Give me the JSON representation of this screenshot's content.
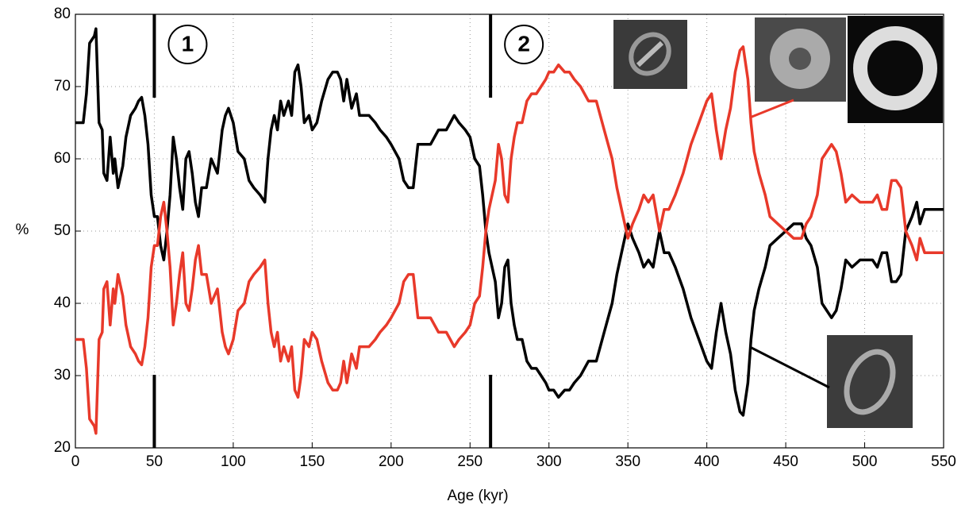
{
  "chart_data": {
    "type": "line",
    "xlabel": "Age (kyr)",
    "ylabel": "%",
    "xlim": [
      0,
      550
    ],
    "ylim": [
      20,
      80
    ],
    "xticks": [
      0,
      50,
      100,
      150,
      200,
      250,
      300,
      350,
      400,
      450,
      500,
      550
    ],
    "yticks": [
      20,
      30,
      40,
      50,
      60,
      70,
      80
    ],
    "grid": true,
    "markers": [
      {
        "x": 50,
        "label": "1"
      },
      {
        "x": 263,
        "label": "2"
      }
    ],
    "x": [
      0,
      3,
      5,
      7,
      9,
      12,
      13,
      15,
      17,
      18,
      20,
      22,
      24,
      25,
      27,
      30,
      32,
      35,
      38,
      40,
      42,
      44,
      46,
      48,
      50,
      52,
      54,
      56,
      58,
      60,
      62,
      64,
      66,
      68,
      70,
      72,
      74,
      76,
      78,
      80,
      83,
      86,
      90,
      93,
      95,
      97,
      100,
      103,
      107,
      110,
      113,
      117,
      120,
      122,
      124,
      126,
      128,
      130,
      132,
      135,
      137,
      139,
      141,
      143,
      145,
      148,
      150,
      153,
      156,
      160,
      163,
      166,
      168,
      170,
      172,
      175,
      178,
      180,
      183,
      186,
      190,
      193,
      197,
      200,
      205,
      208,
      211,
      214,
      217,
      220,
      225,
      230,
      235,
      240,
      243,
      247,
      250,
      253,
      256,
      258,
      260,
      262,
      264,
      266,
      268,
      270,
      272,
      274,
      276,
      278,
      280,
      283,
      286,
      289,
      292,
      295,
      298,
      300,
      303,
      306,
      310,
      313,
      316,
      320,
      325,
      330,
      335,
      340,
      343,
      346,
      350,
      353,
      357,
      360,
      363,
      366,
      370,
      373,
      376,
      380,
      385,
      390,
      395,
      400,
      403,
      406,
      409,
      412,
      415,
      418,
      421,
      423,
      426,
      428,
      430,
      433,
      437,
      440,
      445,
      450,
      455,
      460,
      463,
      466,
      470,
      473,
      476,
      479,
      482,
      485,
      488,
      492,
      497,
      500,
      505,
      508,
      511,
      514,
      517,
      520,
      523,
      526,
      530,
      533,
      535,
      538,
      540,
      545,
      550
    ],
    "series": [
      {
        "color": "#000000",
        "values": [
          65,
          65,
          65,
          69,
          76,
          77,
          78,
          65,
          64,
          58,
          57,
          63,
          58,
          60,
          56,
          59,
          63,
          66,
          67,
          68,
          68.5,
          66,
          62,
          55,
          52,
          52,
          48,
          46,
          50,
          55,
          63,
          60,
          56,
          53,
          60,
          61,
          58,
          54,
          52,
          56,
          56,
          60,
          58,
          64,
          66,
          67,
          65,
          61,
          60,
          57,
          56,
          55,
          54,
          60,
          64,
          66,
          64,
          68,
          66,
          68,
          66,
          72,
          73,
          70,
          65,
          66,
          64,
          65,
          68,
          71,
          72,
          72,
          71,
          68,
          71,
          67,
          69,
          66,
          66,
          66,
          65,
          64,
          63,
          62,
          60,
          57,
          56,
          56,
          62,
          62,
          62,
          64,
          64,
          66,
          65,
          64,
          63,
          60,
          59,
          55,
          50,
          47,
          45,
          43,
          38,
          40,
          45,
          46,
          40,
          37,
          35,
          35,
          32,
          31,
          31,
          30,
          29,
          28,
          28,
          27,
          28,
          28,
          29,
          30,
          32,
          32,
          36,
          40,
          44,
          47,
          51,
          49,
          47,
          45,
          46,
          45,
          50,
          47,
          47,
          45,
          42,
          38,
          35,
          32,
          31,
          36,
          40,
          36,
          33,
          28,
          25,
          24.5,
          29,
          35,
          39,
          42,
          45,
          48,
          49,
          50,
          51,
          51,
          49,
          48,
          45,
          40,
          39,
          38,
          39,
          42,
          46,
          45,
          46,
          46,
          46,
          45,
          47,
          47,
          43,
          43,
          44,
          50,
          52,
          54,
          51,
          53,
          53,
          53,
          53
        ]
      },
      {
        "color": "#e8392a",
        "values": [
          35,
          35,
          35,
          31,
          24,
          23,
          22,
          35,
          36,
          42,
          43,
          37,
          42,
          40,
          44,
          41,
          37,
          34,
          33,
          32,
          31.5,
          34,
          38,
          45,
          48,
          48,
          52,
          54,
          50,
          45,
          37,
          40,
          44,
          47,
          40,
          39,
          42,
          46,
          48,
          44,
          44,
          40,
          42,
          36,
          34,
          33,
          35,
          39,
          40,
          43,
          44,
          45,
          46,
          40,
          36,
          34,
          36,
          32,
          34,
          32,
          34,
          28,
          27,
          30,
          35,
          34,
          36,
          35,
          32,
          29,
          28,
          28,
          29,
          32,
          29,
          33,
          31,
          34,
          34,
          34,
          35,
          36,
          37,
          38,
          40,
          43,
          44,
          44,
          38,
          38,
          38,
          36,
          36,
          34,
          35,
          36,
          37,
          40,
          41,
          45,
          50,
          53,
          55,
          57,
          62,
          60,
          55,
          54,
          60,
          63,
          65,
          65,
          68,
          69,
          69,
          70,
          71,
          72,
          72,
          73,
          72,
          72,
          71,
          70,
          68,
          68,
          64,
          60,
          56,
          53,
          49,
          51,
          53,
          55,
          54,
          55,
          50,
          53,
          53,
          55,
          58,
          62,
          65,
          68,
          69,
          64,
          60,
          64,
          67,
          72,
          75,
          75.5,
          71,
          65,
          61,
          58,
          55,
          52,
          51,
          50,
          49,
          49,
          51,
          52,
          55,
          60,
          61,
          62,
          61,
          58,
          54,
          55,
          54,
          54,
          54,
          55,
          53,
          53,
          57,
          57,
          56,
          50,
          48,
          46,
          49,
          47,
          47,
          47,
          47
        ]
      }
    ]
  }
}
